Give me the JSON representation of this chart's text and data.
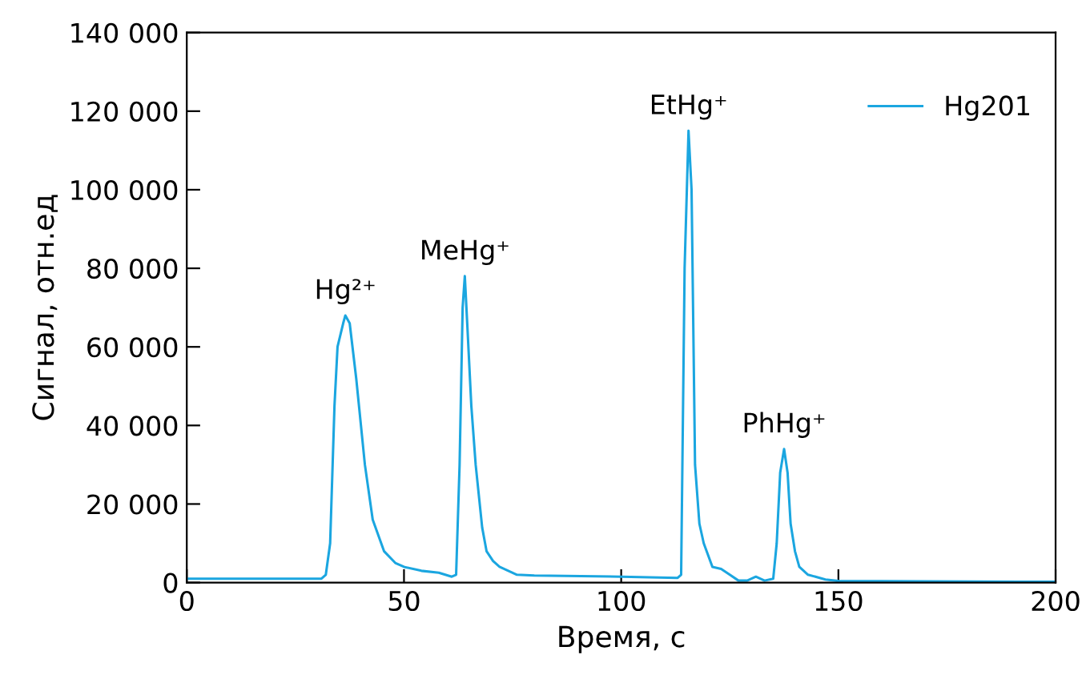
{
  "chart_data": {
    "type": "line",
    "xlabel": "Время, с",
    "ylabel": "Сигнал, отн.ед",
    "xlim": [
      0,
      200
    ],
    "xticks": [
      0,
      50,
      100,
      150,
      200
    ],
    "ylim": [
      0,
      140000
    ],
    "yticks": [
      0,
      {
        "value": 20000,
        "label": "20 000"
      },
      {
        "value": 40000,
        "label": "40 000"
      },
      {
        "value": 60000,
        "label": "60 000"
      },
      {
        "value": 80000,
        "label": "80 000"
      },
      {
        "value": 100000,
        "label": "100 000"
      },
      {
        "value": 120000,
        "label": "120 000"
      },
      {
        "value": 140000,
        "label": "140 000"
      }
    ],
    "legend": "top right",
    "grid": false,
    "marker": "none",
    "line_style": "solid",
    "series": [
      {
        "name": "Hg201",
        "color": "#1ba6e0",
        "x": [
          0,
          20,
          31,
          32,
          33,
          34,
          34.7,
          36,
          36.5,
          37.5,
          39,
          41,
          42.8,
          45.4,
          48,
          50,
          54,
          58,
          61,
          62,
          62.8,
          63.5,
          64,
          64.6,
          65.5,
          66.5,
          68,
          69,
          70.5,
          72,
          76,
          80,
          100,
          113,
          113.8,
          114.6,
          115.5,
          116.2,
          117,
          118,
          119,
          121,
          123,
          125,
          127,
          129,
          131,
          133,
          135,
          135.8,
          136.6,
          137.5,
          138.3,
          139,
          140,
          141,
          143,
          147,
          150,
          170,
          200
        ],
        "values": [
          1000,
          1000,
          1000,
          2000,
          10000,
          45000,
          60000,
          66000,
          68000,
          66000,
          52000,
          30000,
          16000,
          8000,
          5000,
          4000,
          3000,
          2500,
          1500,
          2000,
          30000,
          70000,
          78000,
          65000,
          45000,
          30000,
          14000,
          8000,
          5500,
          4000,
          2000,
          1800,
          1500,
          1200,
          2000,
          80000,
          115000,
          100000,
          30000,
          15000,
          10000,
          4000,
          3500,
          2000,
          500,
          500,
          1500,
          500,
          1000,
          10000,
          28000,
          34000,
          28000,
          15000,
          8000,
          4000,
          2000,
          800,
          400,
          300,
          200
        ]
      }
    ],
    "annotations": [
      {
        "text": "Hg²⁺",
        "x": 36.5,
        "y": 68000
      },
      {
        "text": "MeHg⁺",
        "x": 64,
        "y": 78000
      },
      {
        "text": "EtHg⁺",
        "x": 115.5,
        "y": 115000
      },
      {
        "text": "PhHg⁺",
        "x": 137.5,
        "y": 34000
      }
    ]
  }
}
